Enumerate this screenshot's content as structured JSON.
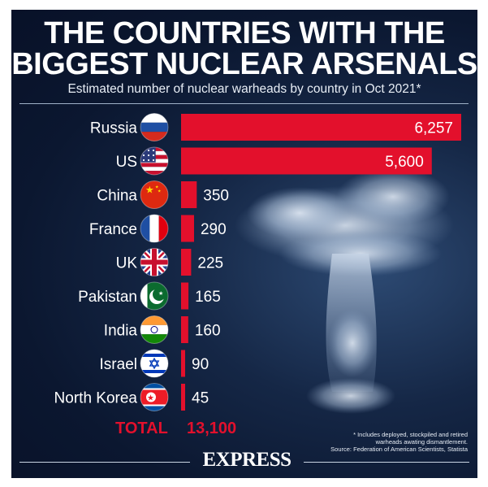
{
  "header": {
    "title_line1": "THE COUNTRIES WITH THE",
    "title_line2": "BIGGEST NUCLEAR ARSENALS",
    "subtitle": "Estimated number of nuclear warheads by country in Oct 2021*"
  },
  "chart_data": {
    "type": "bar",
    "orientation": "horizontal",
    "categories": [
      "Russia",
      "US",
      "China",
      "France",
      "UK",
      "Pakistan",
      "India",
      "Israel",
      "North Korea"
    ],
    "values": [
      6257,
      5600,
      350,
      290,
      225,
      165,
      160,
      90,
      45
    ],
    "value_labels": [
      "6,257",
      "5,600",
      "350",
      "290",
      "225",
      "165",
      "160",
      "90",
      "45"
    ],
    "flag_icons": [
      "russia-flag-icon",
      "us-flag-icon",
      "china-flag-icon",
      "france-flag-icon",
      "uk-flag-icon",
      "pakistan-flag-icon",
      "india-flag-icon",
      "israel-flag-icon",
      "north-korea-flag-icon"
    ],
    "bar_color": "#e3102c",
    "xlim": [
      0,
      6257
    ],
    "grid": false
  },
  "total": {
    "label": "TOTAL",
    "value": "13,100"
  },
  "footnote": {
    "line1": "* Includes deployed, stockpiled and retired",
    "line2": "warheads awating dismantlement.",
    "line3": "Source: Federation of American Scientists, Statista"
  },
  "brand": "EXPRESS",
  "colors": {
    "accent": "#e3102c",
    "background": "#0b1730",
    "text": "#ffffff"
  }
}
